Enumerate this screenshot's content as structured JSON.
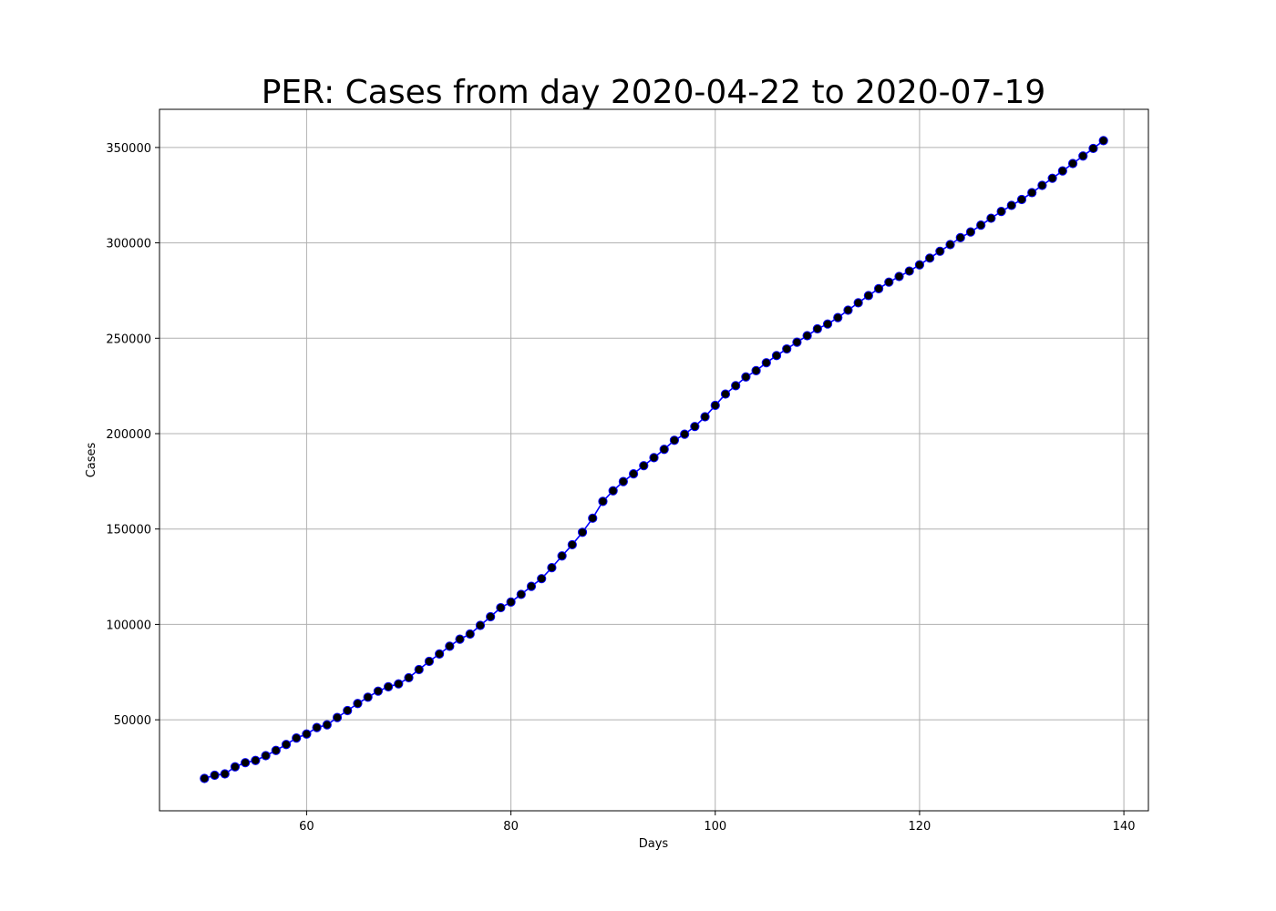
{
  "chart_data": {
    "type": "line",
    "title": "PER: Cases from day 2020-04-22 to 2020-07-19",
    "xlabel": "Days",
    "ylabel": "Cases",
    "xlim": [
      45.6,
      142.4
    ],
    "ylim": [
      2300,
      370000
    ],
    "xticks": [
      60,
      80,
      100,
      120,
      140
    ],
    "yticks": [
      50000,
      100000,
      150000,
      200000,
      250000,
      300000,
      350000
    ],
    "grid": true,
    "line_color": "#0000ff",
    "marker_color": "#000000",
    "series": [
      {
        "x": [
          50,
          51,
          52,
          53,
          54,
          55,
          56,
          57,
          58,
          59,
          60,
          61,
          62,
          63,
          64,
          65,
          66,
          67,
          68,
          69,
          70,
          71,
          72,
          73,
          74,
          75,
          76,
          77,
          78,
          79,
          80,
          81,
          82,
          83,
          84,
          85,
          86,
          87,
          88,
          89,
          90,
          91,
          92,
          93,
          94,
          95,
          96,
          97,
          98,
          99,
          100,
          101,
          102,
          103,
          104,
          105,
          106,
          107,
          108,
          109,
          110,
          111,
          112,
          113,
          114,
          115,
          116,
          117,
          118,
          119,
          120,
          121,
          122,
          123,
          124,
          125,
          126,
          127,
          128,
          129,
          130,
          131,
          132,
          133,
          134,
          135,
          136,
          137,
          138
        ],
        "values": [
          19250,
          20914,
          21648,
          25331,
          27517,
          28699,
          31190,
          33931,
          37051,
          40459,
          42534,
          45928,
          47372,
          51189,
          54817,
          58526,
          61847,
          65015,
          67307,
          68822,
          72059,
          76306,
          80604,
          84495,
          88541,
          92273,
          94933,
          99483,
          104020,
          108769,
          111698,
          115754,
          119959,
          123979,
          129751,
          135905,
          141779,
          148285,
          155671,
          164476,
          170039,
          174884,
          178914,
          183198,
          187400,
          191758,
          196515,
          199696,
          203736,
          208823,
          214788,
          220749,
          225132,
          229736,
          232992,
          237156,
          240908,
          244388,
          247925,
          251338,
          254936,
          257447,
          260810,
          264689,
          268602,
          272364,
          275989,
          279419,
          282365,
          285213,
          288477,
          292004,
          295599,
          299080,
          302718,
          305703,
          309278,
          312911,
          316448,
          319646,
          322710,
          326326,
          330123,
          333867,
          337724,
          341586,
          345537,
          349500,
          353590
        ]
      }
    ]
  }
}
